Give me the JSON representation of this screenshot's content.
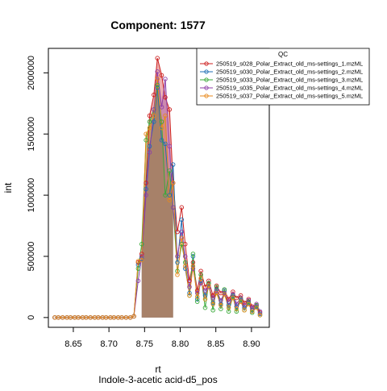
{
  "chart_data": {
    "type": "line",
    "title": "Component: 1577",
    "xlabel": "rt",
    "ylabel": "int",
    "subtitle": "Indole-3-acetic acid-d5_pos",
    "xlim": [
      8.615,
      8.925
    ],
    "ylim": [
      -80000,
      2200000
    ],
    "xticks": [
      8.65,
      8.7,
      8.75,
      8.8,
      8.85,
      8.9
    ],
    "xtick_labels": [
      "8.65",
      "8.70",
      "8.75",
      "8.80",
      "8.85",
      "8.90"
    ],
    "yticks": [
      0,
      500000,
      1000000,
      1500000,
      2000000
    ],
    "ytick_labels": [
      "0",
      "500000",
      "1000000",
      "1500000",
      "2000000"
    ],
    "legend": {
      "title": "QC",
      "position": "top-right"
    },
    "x": [
      8.624,
      8.629,
      8.635,
      8.641,
      8.646,
      8.652,
      8.657,
      8.663,
      8.668,
      8.674,
      8.68,
      8.685,
      8.691,
      8.696,
      8.702,
      8.707,
      8.713,
      8.718,
      8.724,
      8.73,
      8.735,
      8.741,
      8.746,
      8.752,
      8.757,
      8.763,
      8.768,
      8.774,
      8.779,
      8.785,
      8.79,
      8.796,
      8.802,
      8.807,
      8.813,
      8.818,
      8.824,
      8.829,
      8.835,
      8.84,
      8.846,
      8.851,
      8.857,
      8.862,
      8.868,
      8.874,
      8.879,
      8.885,
      8.89,
      8.896,
      8.901,
      8.907,
      8.912
    ],
    "series": [
      {
        "name": "250519_s028_Polar_Extract_old_ms-settings_1.mzML",
        "color": "#cc1f1f",
        "values": [
          0,
          0,
          0,
          0,
          0,
          0,
          0,
          0,
          0,
          0,
          0,
          0,
          0,
          0,
          0,
          0,
          0,
          0,
          0,
          0,
          10000,
          450000,
          520000,
          1100000,
          1650000,
          1820000,
          2120000,
          1980000,
          1800000,
          1700000,
          1100000,
          700000,
          900000,
          600000,
          300000,
          450000,
          220000,
          380000,
          250000,
          300000,
          180000,
          260000,
          200000,
          220000,
          150000,
          210000,
          160000,
          180000,
          120000,
          150000,
          90000,
          100000,
          40000
        ]
      },
      {
        "name": "250519_s030_Polar_Extract_old_ms-settings_2.mzML",
        "color": "#1f6fb4",
        "values": [
          0,
          0,
          0,
          0,
          0,
          0,
          0,
          0,
          0,
          0,
          0,
          0,
          0,
          0,
          0,
          0,
          0,
          0,
          0,
          0,
          10000,
          430000,
          480000,
          1050000,
          1400000,
          1600000,
          1880000,
          1450000,
          1420000,
          1000000,
          1250000,
          450000,
          800000,
          400000,
          200000,
          500000,
          150000,
          300000,
          180000,
          280000,
          120000,
          230000,
          110000,
          220000,
          100000,
          180000,
          90000,
          140000,
          80000,
          120000,
          60000,
          90000,
          30000
        ]
      },
      {
        "name": "250519_s033_Polar_Extract_old_ms-settings_3.mzML",
        "color": "#3aaa3a",
        "values": [
          0,
          0,
          0,
          0,
          0,
          0,
          0,
          0,
          0,
          0,
          0,
          0,
          0,
          0,
          0,
          0,
          0,
          0,
          0,
          0,
          10000,
          400000,
          600000,
          1450000,
          1600000,
          1700000,
          1900000,
          1600000,
          1000000,
          1200000,
          900000,
          380000,
          600000,
          450000,
          180000,
          520000,
          130000,
          350000,
          80000,
          280000,
          60000,
          250000,
          70000,
          230000,
          50000,
          170000,
          50000,
          150000,
          60000,
          130000,
          40000,
          100000,
          20000
        ]
      },
      {
        "name": "250519_s035_Polar_Extract_old_ms-settings_4.mzML",
        "color": "#8e3fa8",
        "values": [
          0,
          0,
          0,
          0,
          0,
          0,
          0,
          0,
          0,
          0,
          0,
          0,
          0,
          0,
          0,
          0,
          0,
          0,
          0,
          0,
          10000,
          300000,
          500000,
          1000000,
          1350000,
          1700000,
          2010000,
          1720000,
          1950000,
          1400000,
          900000,
          500000,
          700000,
          500000,
          250000,
          400000,
          200000,
          280000,
          220000,
          250000,
          160000,
          220000,
          140000,
          200000,
          130000,
          190000,
          110000,
          160000,
          100000,
          140000,
          80000,
          110000,
          50000
        ]
      },
      {
        "name": "250519_s037_Polar_Extract_old_ms-settings_5.mzML",
        "color": "#e8891c",
        "values": [
          0,
          0,
          0,
          0,
          0,
          0,
          0,
          0,
          0,
          0,
          0,
          0,
          0,
          0,
          0,
          0,
          0,
          0,
          0,
          0,
          10000,
          460000,
          470000,
          1500000,
          1550000,
          1650000,
          1950000,
          1550000,
          1650000,
          960000,
          1100000,
          350000,
          650000,
          420000,
          180000,
          420000,
          170000,
          320000,
          150000,
          260000,
          110000,
          200000,
          100000,
          190000,
          80000,
          160000,
          70000,
          130000,
          60000,
          110000,
          50000,
          80000,
          20000
        ]
      }
    ]
  }
}
